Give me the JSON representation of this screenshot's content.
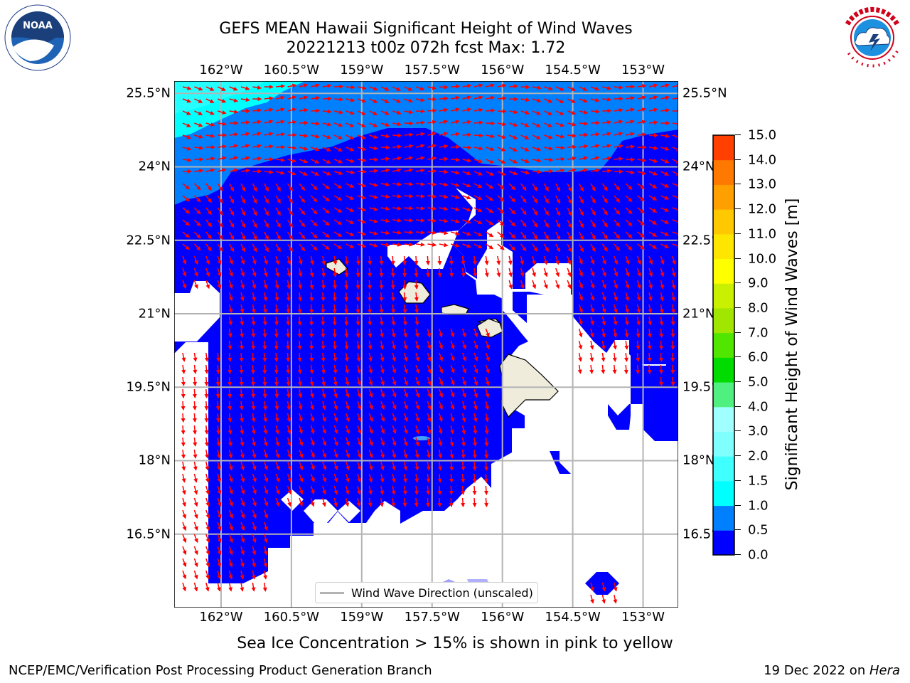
{
  "title": {
    "line1": "GEFS MEAN Hawaii Significant Height of Wind Waves",
    "line2": "20221213 t00z 072h fcst   Max: 1.72"
  },
  "logos": {
    "left": {
      "name": "noaa-logo",
      "text": "NOAA",
      "ring_text": "NATIONAL OCEANIC AND ATMOSPHERIC ADMINISTRATION · U.S. DEPARTMENT OF COMMERCE"
    },
    "right": {
      "name": "nws-logo",
      "ring_text": "NATIONAL WEATHER SERVICE"
    }
  },
  "map": {
    "lon_ticks": [
      "162°W",
      "160.5°W",
      "159°W",
      "157.5°W",
      "156°W",
      "154.5°W",
      "153°W"
    ],
    "lat_ticks": [
      "25.5°N",
      "24°N",
      "22.5°N",
      "21°N",
      "19.5°N",
      "18°N",
      "16.5°N"
    ],
    "lon_values": [
      -162,
      -160.5,
      -159,
      -157.5,
      -156,
      -154.5,
      -153
    ],
    "lat_values": [
      25.5,
      24,
      22.5,
      21,
      19.5,
      18,
      16.5
    ],
    "lon_range": [
      -163,
      -152.25
    ],
    "lat_range": [
      15,
      25.75
    ],
    "arrow_color": "#ff0000",
    "land_color": "#efecdc",
    "grid": true
  },
  "legend": {
    "label": "Wind Wave Direction (unscaled)",
    "placement": "bottom-center"
  },
  "colorbar": {
    "label": "Significant Height of Wind Waves [m]",
    "ticks": [
      "0.0",
      "0.5",
      "1.0",
      "1.5",
      "2.0",
      "3.0",
      "4.0",
      "5.0",
      "6.0",
      "7.0",
      "8.0",
      "9.0",
      "10.0",
      "11.0",
      "12.0",
      "13.0",
      "14.0",
      "15.0"
    ],
    "colors": [
      "#0000ff",
      "#0080ff",
      "#00ffff",
      "#40ffff",
      "#80ffff",
      "#a0ffff",
      "#50f080",
      "#00dc00",
      "#50e600",
      "#a0e600",
      "#c8f000",
      "#ffff00",
      "#ffe600",
      "#ffc800",
      "#ffa000",
      "#ff7800",
      "#ff4000"
    ]
  },
  "caption": "Sea Ice Concentration > 15% is shown in pink to yellow",
  "footer": {
    "left": "NCEP/EMC/Verification Post Processing Product Generation Branch",
    "date": "19 Dec 2022 on ",
    "machine": "Hera"
  }
}
